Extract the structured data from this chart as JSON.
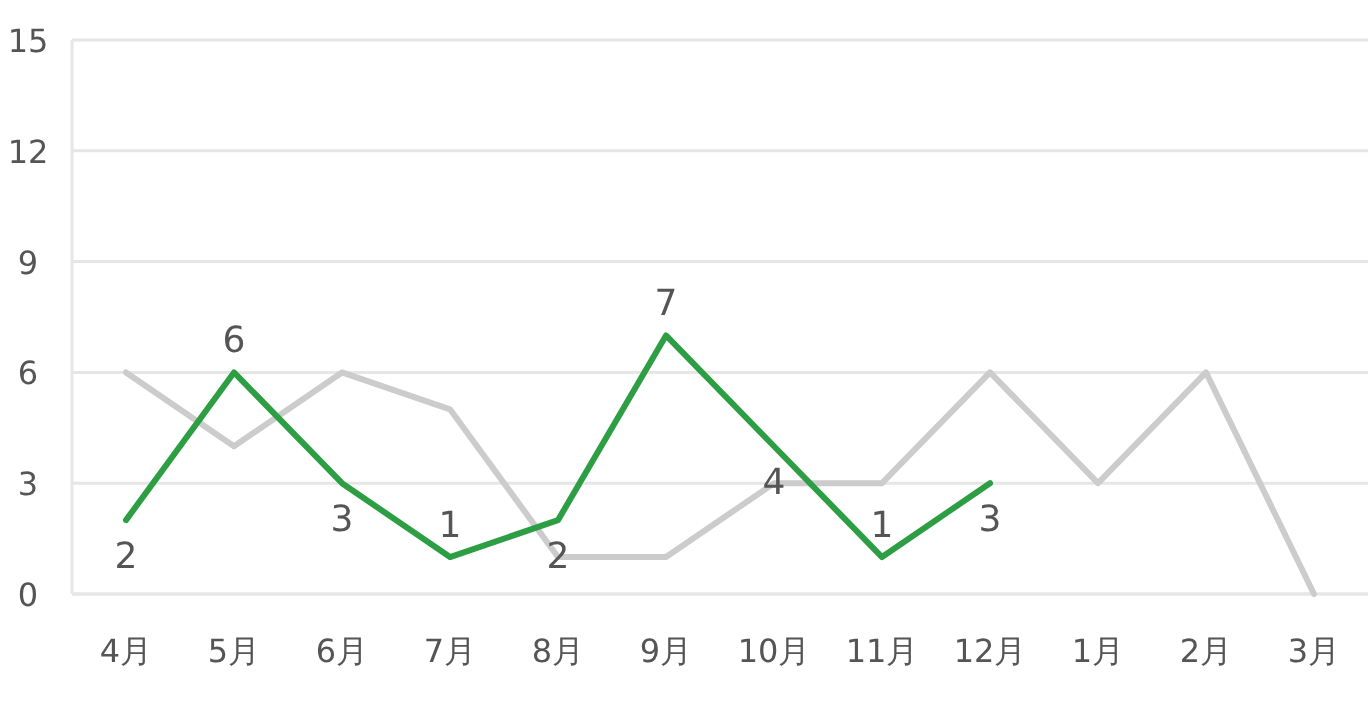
{
  "chart_data": {
    "type": "line",
    "categories": [
      "4月",
      "5月",
      "6月",
      "7月",
      "8月",
      "9月",
      "10月",
      "11月",
      "12月",
      "1月",
      "2月",
      "3月"
    ],
    "series": [
      {
        "color": "#cccccc",
        "values": [
          6,
          4,
          6,
          5,
          1,
          1,
          3,
          3,
          6,
          3,
          6,
          0
        ]
      },
      {
        "color": "#2e9e44",
        "values": [
          2,
          6,
          3,
          1,
          2,
          7,
          4,
          1,
          3,
          null,
          null,
          null
        ],
        "data_labels": true
      }
    ],
    "ylim": [
      0,
      15
    ],
    "yticks": [
      0,
      3,
      6,
      9,
      12,
      15
    ],
    "grid": "y",
    "marker": "none",
    "line_style": "solid"
  }
}
